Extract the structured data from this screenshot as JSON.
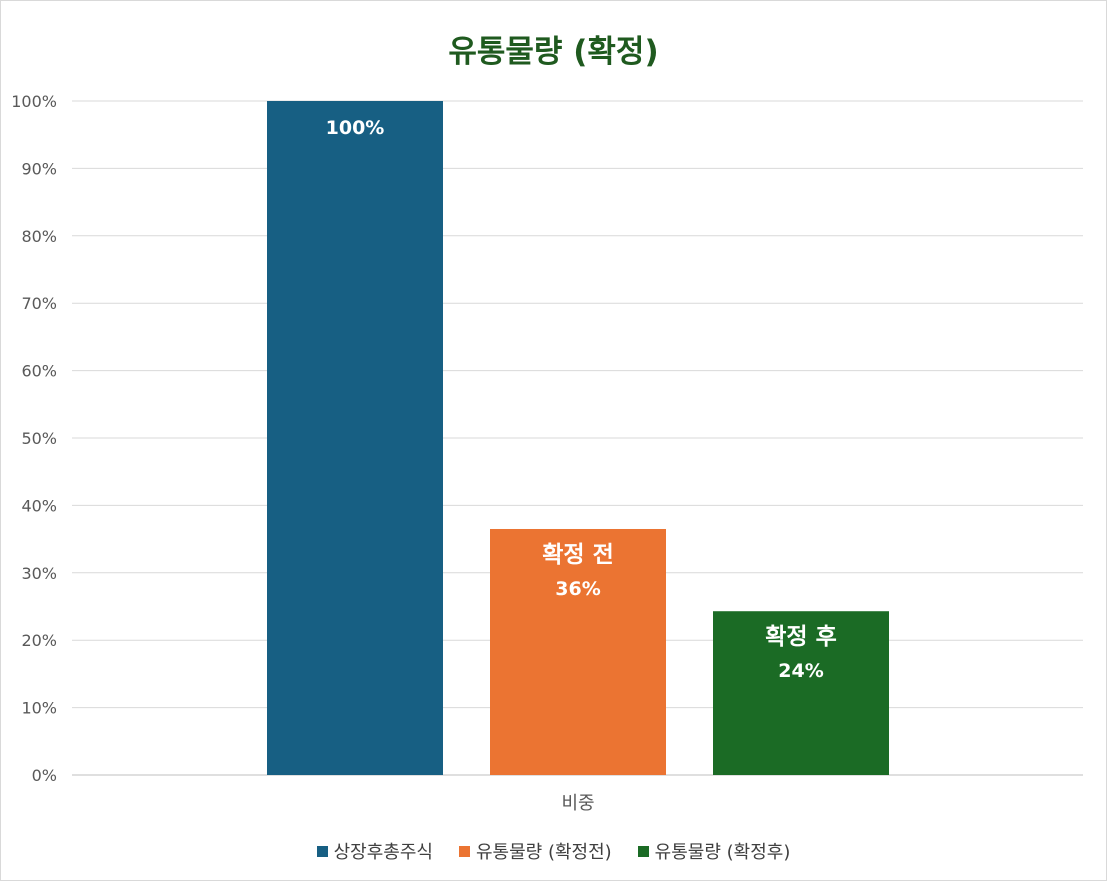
{
  "chart_data": {
    "type": "bar",
    "title": "유통물량 (확정)",
    "categories": [
      "비중"
    ],
    "ylim": [
      0,
      100
    ],
    "yticks": [
      "0%",
      "10%",
      "20%",
      "30%",
      "40%",
      "50%",
      "60%",
      "70%",
      "80%",
      "90%",
      "100%"
    ],
    "grid": true,
    "legend_position": "bottom",
    "series": [
      {
        "name": "상장후총주식",
        "values": [
          100
        ],
        "color": "#175f83",
        "label_lines": [
          "100%"
        ]
      },
      {
        "name": "유통물량 (확정전)",
        "values": [
          36.5
        ],
        "color": "#eb7432",
        "label_lines": [
          "확정 전",
          "36%"
        ]
      },
      {
        "name": "유통물량 (확정후)",
        "values": [
          24.3
        ],
        "color": "#1b6b25",
        "label_lines": [
          "확정 후",
          "24%"
        ]
      }
    ]
  }
}
